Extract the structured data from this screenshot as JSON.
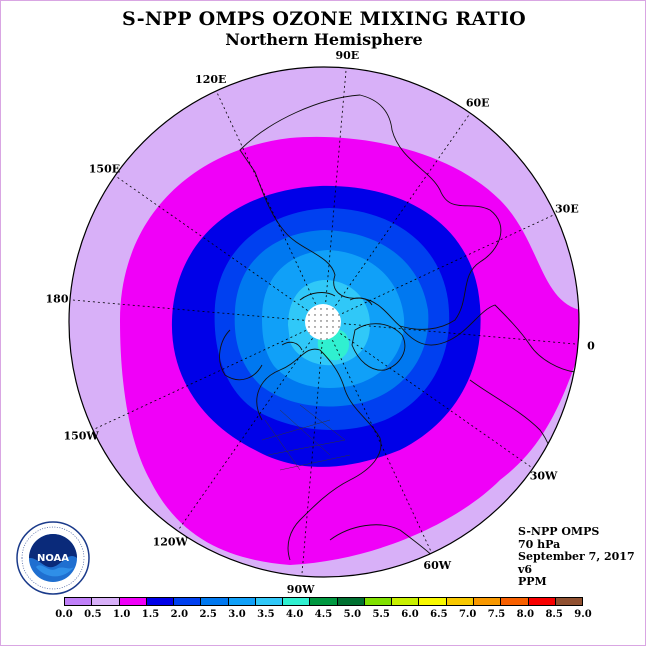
{
  "title": "S-NPP OMPS OZONE MIXING RATIO",
  "subtitle": "Northern Hemisphere",
  "longitude_labels": [
    "0",
    "30E",
    "60E",
    "90E",
    "120E",
    "150E",
    "180",
    "150W",
    "120W",
    "90W",
    "60W",
    "30W"
  ],
  "info": {
    "instrument": "S-NPP OMPS",
    "level": "70 hPa",
    "date": "September 7, 2017",
    "version": "v6",
    "units": "PPM"
  },
  "colorbar": {
    "ticks": [
      "0.0",
      "0.5",
      "1.0",
      "1.5",
      "2.0",
      "2.5",
      "3.0",
      "3.5",
      "4.0",
      "4.5",
      "5.0",
      "5.5",
      "6.0",
      "6.5",
      "7.0",
      "7.5",
      "8.0",
      "8.5",
      "9.0"
    ],
    "colors": [
      "#c080f8",
      "#d8b0f8",
      "#f000f8",
      "#0000e8",
      "#0040f0",
      "#0078f0",
      "#10a0f8",
      "#30c8f8",
      "#30f0d0",
      "#009840",
      "#007030",
      "#80e000",
      "#c8f000",
      "#f8f800",
      "#f8c800",
      "#f89800",
      "#f86000",
      "#f80000",
      "#905030"
    ]
  },
  "map_colors": {
    "outer": "#d8b0f8",
    "ring_magenta": "#f000f8",
    "ring_darkblue": "#0000e8",
    "ring_blue": "#0040f0",
    "ring_mid": "#0078f0",
    "ring_light": "#10a0f8",
    "ring_cyan": "#30c8f8",
    "core_aqua": "#30f0d0",
    "pole_missing": "#ffffff"
  },
  "logo_text": "NOAA"
}
